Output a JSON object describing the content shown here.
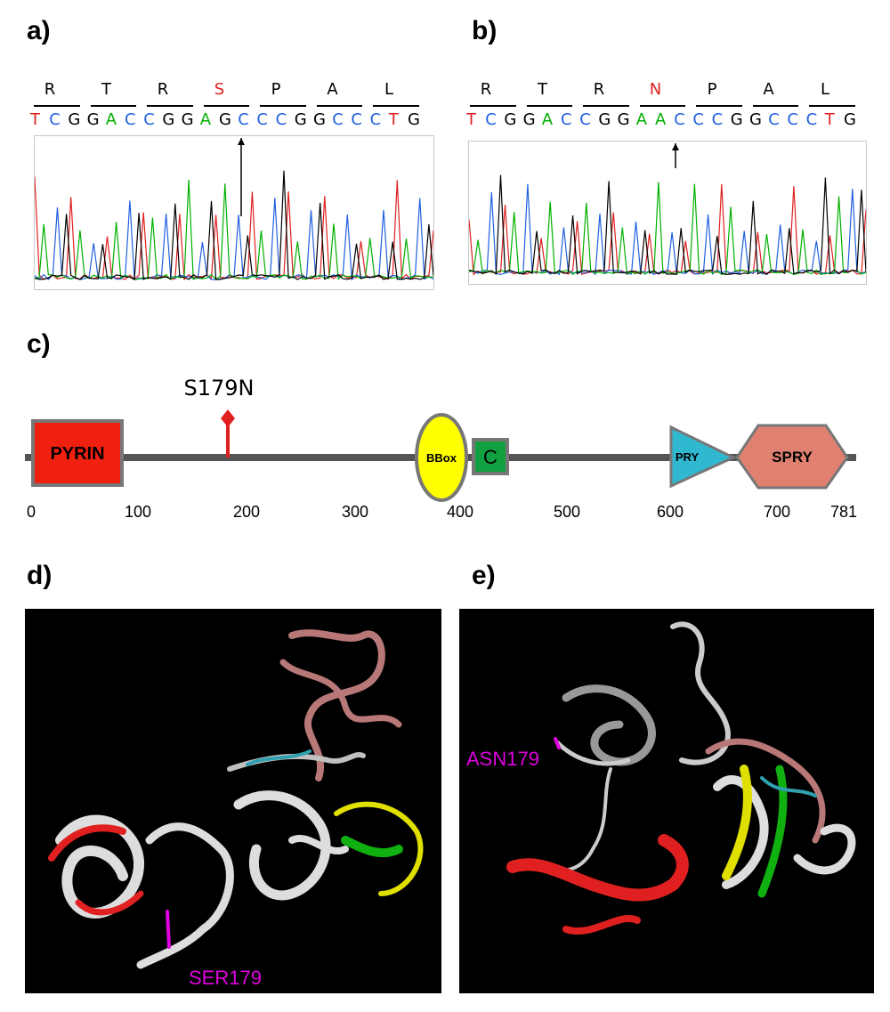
{
  "panels": {
    "a": {
      "label": "a)"
    },
    "b": {
      "label": "b)"
    },
    "c": {
      "label": "c)"
    },
    "d": {
      "label": "d)"
    },
    "e": {
      "label": "e)"
    }
  },
  "chromatogram_a": {
    "amino_acids": [
      "R",
      "T",
      "R",
      "S",
      "P",
      "A",
      "L"
    ],
    "highlight_index": 3,
    "bases": [
      "T",
      "C",
      "G",
      "G",
      "A",
      "C",
      "C",
      "G",
      "G",
      "A",
      "G",
      "C",
      "C",
      "C",
      "G",
      "G",
      "C",
      "C",
      "C",
      "T",
      "G"
    ]
  },
  "chromatogram_b": {
    "amino_acids": [
      "R",
      "T",
      "R",
      "N",
      "P",
      "A",
      "L"
    ],
    "highlight_index": 3,
    "bases": [
      "T",
      "C",
      "G",
      "G",
      "A",
      "C",
      "C",
      "G",
      "G",
      "A",
      "A",
      "C",
      "C",
      "C",
      "G",
      "G",
      "C",
      "C",
      "C",
      "T",
      "G"
    ]
  },
  "base_colors": {
    "A": "#00b000",
    "C": "#2060e0",
    "G": "#000000",
    "T": "#e02020"
  },
  "domain_map": {
    "mutation_label": "S179N",
    "domains": {
      "pyrin": "PYRIN",
      "bbox": "BBox",
      "coiled": "C",
      "pry": "PRY",
      "spry": "SPRY"
    },
    "ticks": [
      "0",
      "100",
      "200",
      "300",
      "400",
      "500",
      "600",
      "700",
      "781"
    ],
    "colors": {
      "pyrin": "#f02010",
      "bbox": "#ffff00",
      "coiled": "#10a040",
      "pry": "#30b8d0",
      "spry": "#e08070"
    }
  },
  "structure_d": {
    "residue_label": "SER179"
  },
  "structure_e": {
    "residue_label": "ASN179"
  }
}
